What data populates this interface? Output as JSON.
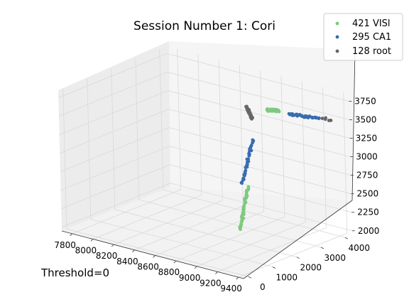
{
  "chart_data": {
    "type": "scatter",
    "projection": "3d",
    "title": "Session Number 1: Cori",
    "annotation": "Threshold=0",
    "xlim": [
      7700,
      9450
    ],
    "ylim": [
      -200,
      4300
    ],
    "zlim": [
      1950,
      3850
    ],
    "x_ticks": [
      7800,
      8000,
      8200,
      8400,
      8600,
      8800,
      9000,
      9200,
      9400
    ],
    "y_ticks": [
      0,
      1000,
      2000,
      3000,
      4000
    ],
    "z_ticks": [
      2000,
      2250,
      2500,
      2750,
      3000,
      3250,
      3500,
      3750
    ],
    "grid": true,
    "legend_position": "top-right",
    "series": [
      {
        "name": "421 VISl",
        "color": "#7fc97f",
        "segments": [
          {
            "from": [
              8935,
              1900,
              2150
            ],
            "to": [
              8935,
              2250,
              2680
            ],
            "count": 40
          },
          {
            "from": [
              8980,
              2930,
              3640
            ],
            "to": [
              9000,
              3330,
              3585
            ],
            "count": 40
          }
        ]
      },
      {
        "name": "295 CA1",
        "color": "#386cb0",
        "segments": [
          {
            "from": [
              8875,
              2260,
              2700
            ],
            "to": [
              8890,
              2700,
              3230
            ],
            "count": 30
          },
          {
            "from": [
              9080,
              3400,
              3555
            ],
            "to": [
              9270,
              3820,
              3520
            ],
            "count": 34
          }
        ]
      },
      {
        "name": "128 root",
        "color": "#666666",
        "segments": [
          {
            "from": [
              8770,
              2980,
              3600
            ],
            "to": [
              8770,
              3210,
              3400
            ],
            "count": 22
          },
          {
            "from": [
              9290,
              3880,
              3520
            ],
            "to": [
              9340,
              3980,
              3500
            ],
            "count": 5
          }
        ]
      }
    ]
  }
}
